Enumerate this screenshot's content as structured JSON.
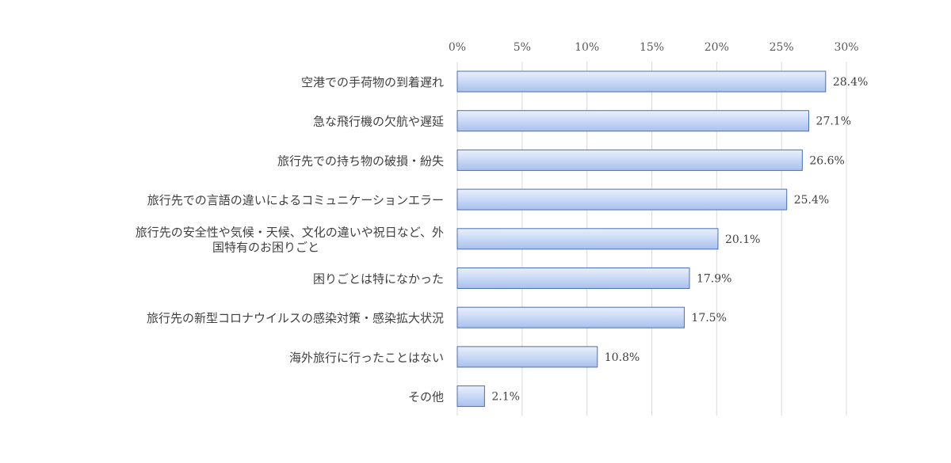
{
  "chart_data": {
    "type": "bar",
    "orientation": "horizontal",
    "title": "",
    "xlabel": "",
    "ylabel": "",
    "categories": [
      [
        "空港での手荷物の到着遅れ"
      ],
      [
        "急な飛行機の欠航や遅延"
      ],
      [
        "旅行先での持ち物の破損・紛失"
      ],
      [
        "旅行先での言語の違いによるコミュニケーションエラー"
      ],
      [
        "旅行先の安全性や気候・天候、文化の違いや祝日など、外",
        "国特有のお困りごと"
      ],
      [
        "困りごとは特になかった"
      ],
      [
        "旅行先の新型コロナウイルスの感染対策・感染拡大状況"
      ],
      [
        "海外旅行に行ったことはない"
      ],
      [
        "その他"
      ]
    ],
    "values": [
      28.4,
      27.1,
      26.6,
      25.4,
      20.1,
      17.9,
      17.5,
      10.8,
      2.1
    ],
    "value_labels": [
      "28.4%",
      "27.1%",
      "26.6%",
      "25.4%",
      "20.1%",
      "17.9%",
      "17.5%",
      "10.8%",
      "2.1%"
    ],
    "xlim": [
      0,
      30
    ],
    "xticks": [
      0,
      5,
      10,
      15,
      20,
      25,
      30
    ],
    "xtick_labels": [
      "0%",
      "5%",
      "10%",
      "15%",
      "20%",
      "25%",
      "30%"
    ],
    "axis_position": "top",
    "grid": true,
    "legend": false,
    "colors": {
      "bar_top": "#e9f0fc",
      "bar_bottom": "#a9c1ee",
      "bar_border": "#4a6fb5",
      "grid": "#d9d9d9"
    }
  }
}
